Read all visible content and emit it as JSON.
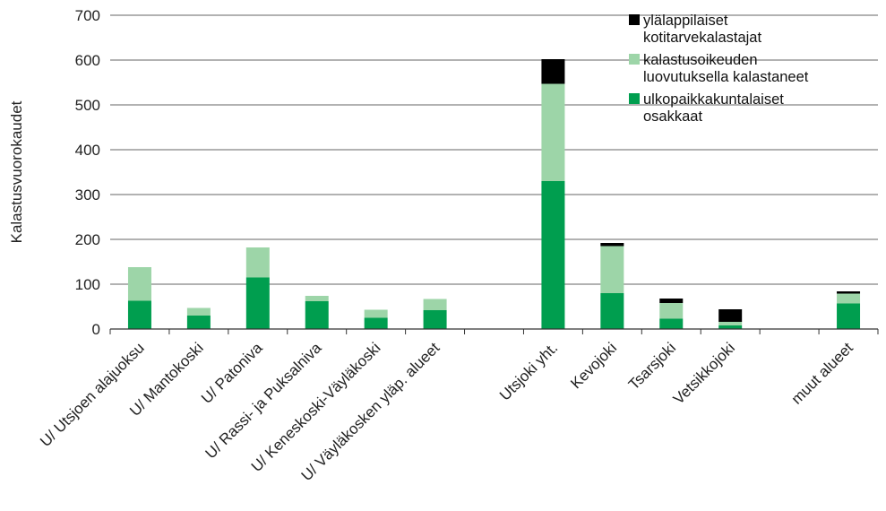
{
  "chart_data": {
    "type": "bar",
    "stacked": true,
    "ylabel": "Kalastusvuorokaudet",
    "ylim": [
      0,
      700
    ],
    "yticks": [
      "0",
      "100",
      "200",
      "300",
      "400",
      "500",
      "600",
      "700"
    ],
    "grid": "horizontal",
    "legend_position": "top-right",
    "categories": [
      "U/ Utsjoen alajuoksu",
      "U/ Mantokoski",
      "U/ Patoniva",
      "U/ Rassi- ja Puksalniva",
      "U/ Keneskoski-Väyläkoski",
      "U/ Väyläkosken yläp. alueet",
      "",
      "Utsjoki yht.",
      "Kevojoki",
      "Tsarsjoki",
      "Vetsikkojoki",
      "",
      "muut alueet"
    ],
    "series": [
      {
        "name": "ulkopaikkakuntalaiset osakkaat",
        "legend_lines": [
          "ulkopaikkakuntalaiset",
          "osakkaat"
        ],
        "color": "#009e4f",
        "values": [
          63,
          30,
          115,
          62,
          25,
          42,
          null,
          330,
          80,
          23,
          8,
          null,
          57
        ]
      },
      {
        "name": "kalastusoikeuden luovutuksella kalastaneet",
        "legend_lines": [
          "kalastusoikeuden",
          "luovutuksella kalastaneet"
        ],
        "color": "#9dd5a8",
        "values": [
          75,
          17,
          67,
          12,
          18,
          25,
          null,
          217,
          105,
          35,
          8,
          null,
          22
        ]
      },
      {
        "name": "ylälappilaiset kotitarvekalastajat",
        "legend_lines": [
          "ylälappilaiset",
          "kotitarvekalastajat"
        ],
        "color": "#000000",
        "values": [
          0,
          0,
          0,
          0,
          0,
          0,
          null,
          55,
          7,
          10,
          28,
          null,
          5
        ]
      }
    ]
  }
}
